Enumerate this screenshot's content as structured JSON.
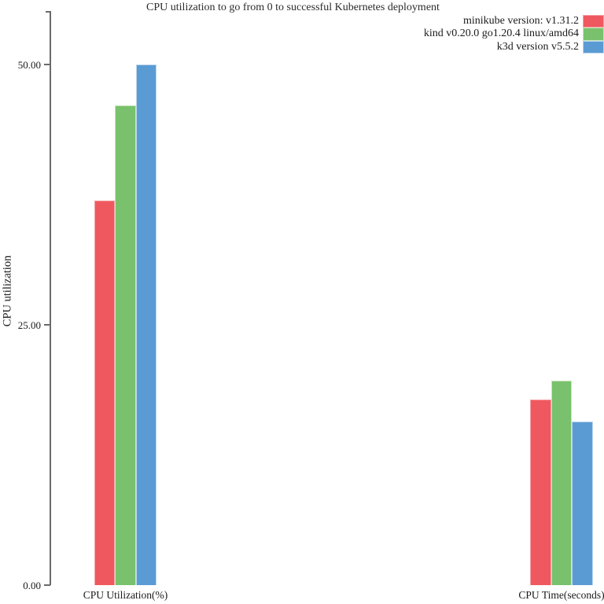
{
  "chart_data": {
    "type": "bar",
    "title": "CPU utilization to go from 0 to successful Kubernetes deployment",
    "categories": [
      "CPU Utilization(%)",
      "CPU Time(seconds)"
    ],
    "series": [
      {
        "name": "minikube version: v1.31.2",
        "values": [
          36.9,
          17.8
        ],
        "color": "#f0585f",
        "border_color": "#f6a2a6"
      },
      {
        "name": "kind v0.20.0 go1.20.4 linux/amd64",
        "values": [
          46.1,
          19.6
        ],
        "color": "#79c16c",
        "border_color": "#c8e6bd"
      },
      {
        "name": "k3d version v5.5.2",
        "values": [
          50,
          15.7
        ],
        "color": "#5b9bd4",
        "border_color": "#bad6ee"
      }
    ],
    "xlabel": "",
    "ylabel": "CPU utilization",
    "ylim": [
      0,
      50
    ],
    "y_ticks": [
      {
        "value": 0,
        "label": "0.00"
      },
      {
        "value": 25,
        "label": "25.00"
      },
      {
        "value": 50,
        "label": "50.00"
      }
    ],
    "legend_position": "top-right",
    "grid": false,
    "axis_color": "#6a6a6a",
    "text_color": "#1a1a1a"
  }
}
